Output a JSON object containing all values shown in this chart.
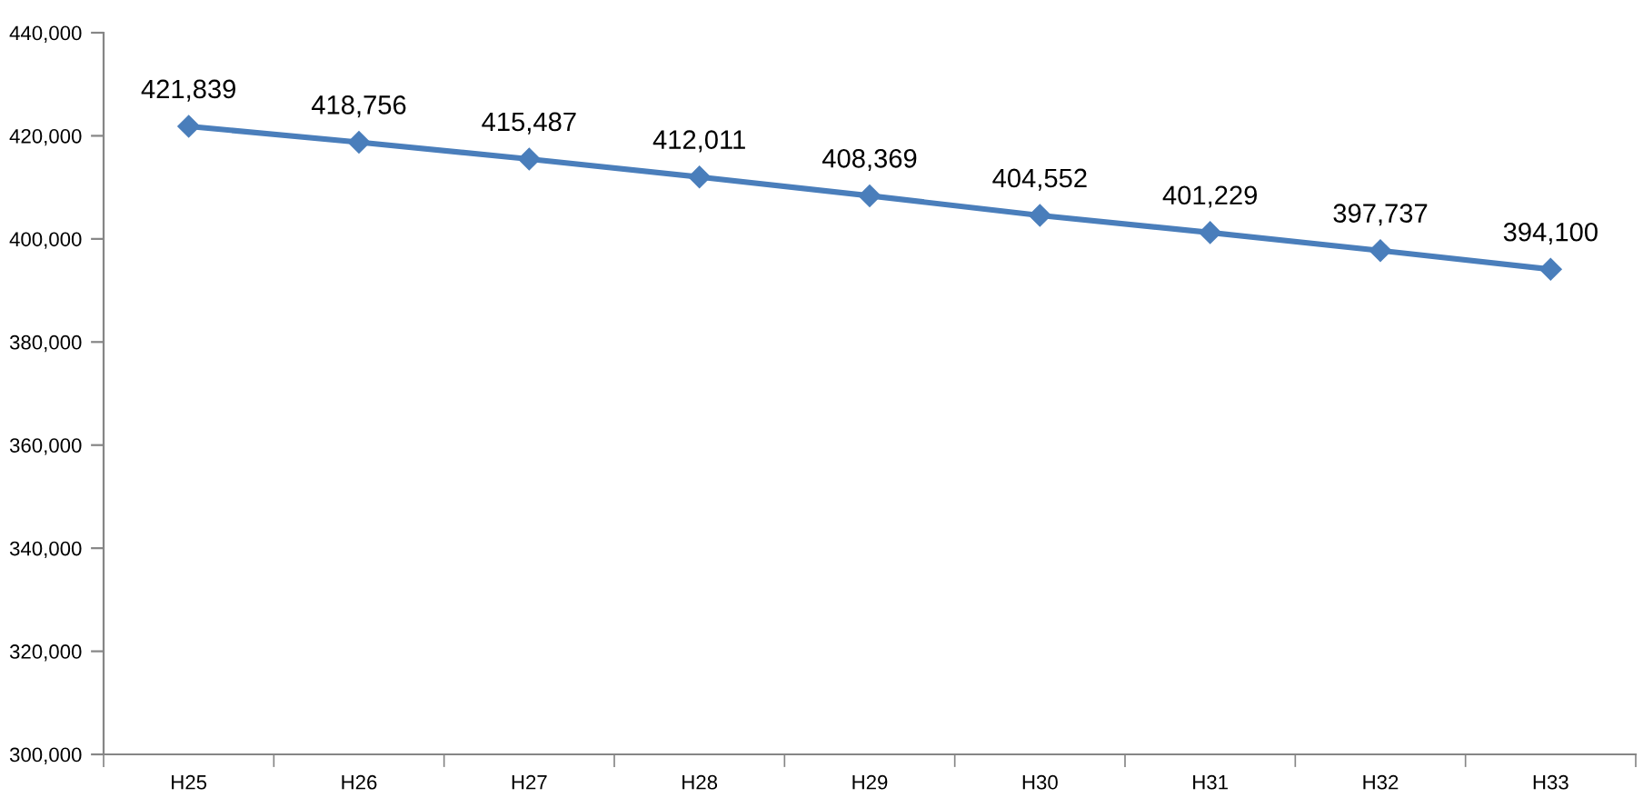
{
  "chart_data": {
    "type": "line",
    "categories": [
      "H25",
      "H26",
      "H27",
      "H28",
      "H29",
      "H30",
      "H31",
      "H32",
      "H33"
    ],
    "series": [
      {
        "color": "#4a7ebb",
        "values": [
          421839,
          418756,
          415487,
          412011,
          408369,
          404552,
          401229,
          397737,
          394100
        ],
        "value_labels": [
          "421,839",
          "418,756",
          "415,487",
          "412,011",
          "408,369",
          "404,552",
          "401,229",
          "397,737",
          "394,100"
        ]
      }
    ],
    "ylim": [
      300000,
      440000
    ],
    "yticks": [
      {
        "value": 300000,
        "label": "300,000"
      },
      {
        "value": 320000,
        "label": "320,000"
      },
      {
        "value": 340000,
        "label": "340,000"
      },
      {
        "value": 360000,
        "label": "360,000"
      },
      {
        "value": 380000,
        "label": "380,000"
      },
      {
        "value": 400000,
        "label": "400,000"
      },
      {
        "value": 420000,
        "label": "420,000"
      },
      {
        "value": 440000,
        "label": "440,000"
      }
    ],
    "grid": false,
    "legend": false,
    "marker": "diamond",
    "line_style": "solid"
  }
}
